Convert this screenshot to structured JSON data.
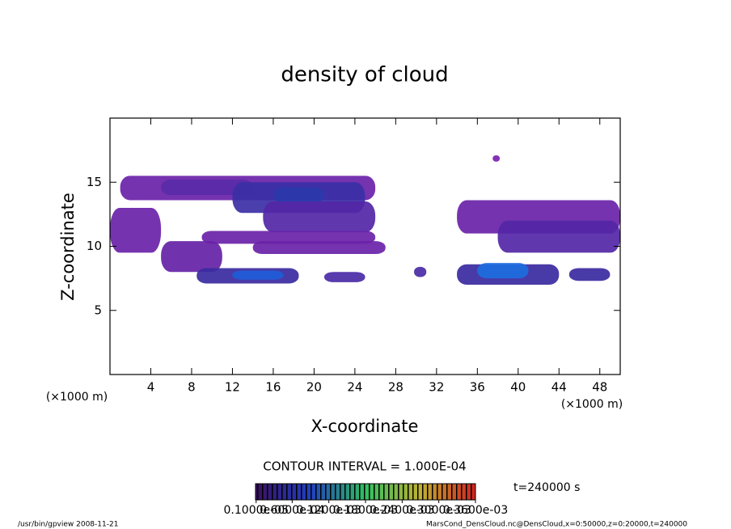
{
  "chart_data": {
    "type": "contour",
    "title": "density of cloud",
    "xlabel": "X-coordinate",
    "ylabel": "Z-coordinate",
    "xunit": "(×1000 m)",
    "yunit": "(×1000 m)",
    "xlim": [
      0,
      50
    ],
    "ylim": [
      0,
      20
    ],
    "xticks": [
      4,
      8,
      12,
      16,
      20,
      24,
      28,
      32,
      36,
      40,
      44,
      48
    ],
    "yticks": [
      5,
      10,
      15
    ],
    "patches": [
      {
        "x": [
          1,
          26
        ],
        "z": [
          13.6,
          15.5
        ],
        "value": 0.0001,
        "color": "#6a22a8"
      },
      {
        "x": [
          5,
          14
        ],
        "z": [
          14,
          15.2
        ],
        "value": 0.00012,
        "color": "#5a2aa8"
      },
      {
        "x": [
          12,
          25
        ],
        "z": [
          12.6,
          15
        ],
        "value": 0.0002,
        "color": "#3b2fa6"
      },
      {
        "x": [
          16,
          21
        ],
        "z": [
          13.4,
          14.6
        ],
        "value": 0.00025,
        "color": "#2a3aaa"
      },
      {
        "x": [
          15,
          26
        ],
        "z": [
          11.1,
          13.5
        ],
        "value": 0.00015,
        "color": "#5226a6"
      },
      {
        "x": [
          0,
          5
        ],
        "z": [
          9.5,
          13
        ],
        "value": 0.0001,
        "color": "#6a22a8"
      },
      {
        "x": [
          5,
          11
        ],
        "z": [
          8,
          10.4
        ],
        "value": 0.0001,
        "color": "#6522a6"
      },
      {
        "x": [
          9,
          26
        ],
        "z": [
          10.2,
          11.2
        ],
        "value": 0.0001,
        "color": "#6a22a8"
      },
      {
        "x": [
          14,
          27
        ],
        "z": [
          9.4,
          10.4
        ],
        "value": 0.0001,
        "color": "#6a22a8"
      },
      {
        "x": [
          8.5,
          18.5
        ],
        "z": [
          7.1,
          8.3
        ],
        "value": 0.0002,
        "color": "#3a2aa0"
      },
      {
        "x": [
          12,
          17
        ],
        "z": [
          7.4,
          8.1
        ],
        "value": 0.0003,
        "color": "#1f5cd8"
      },
      {
        "x": [
          21,
          25
        ],
        "z": [
          7.2,
          8
        ],
        "value": 0.0001,
        "color": "#4a2aa6"
      },
      {
        "x": [
          29.8,
          31
        ],
        "z": [
          7.6,
          8.4
        ],
        "value": 0.0001,
        "color": "#4a2aa6"
      },
      {
        "x": [
          34,
          50
        ],
        "z": [
          11,
          13.6
        ],
        "value": 0.0001,
        "color": "#6a22a8"
      },
      {
        "x": [
          38,
          50
        ],
        "z": [
          9.5,
          12
        ],
        "value": 0.00015,
        "color": "#5226a6"
      },
      {
        "x": [
          34,
          44
        ],
        "z": [
          7,
          8.6
        ],
        "value": 0.0002,
        "color": "#3a2aa0"
      },
      {
        "x": [
          36,
          41
        ],
        "z": [
          7.5,
          8.7
        ],
        "value": 0.00035,
        "color": "#1d6ee0"
      },
      {
        "x": [
          45,
          49
        ],
        "z": [
          7.3,
          8.3
        ],
        "value": 0.0002,
        "color": "#3a2aa0"
      },
      {
        "x": [
          37.5,
          38.2
        ],
        "z": [
          16.6,
          17.1
        ],
        "value": 0.0001,
        "color": "#7a1fb0"
      }
    ],
    "contour_interval": "CONTOUR INTERVAL = 1.000E-04",
    "time_label": "t=240000 s",
    "colorbar": {
      "lim": [
        0,
        0.00036
      ],
      "ticks": [
        {
          "value": 1e-06,
          "label": "0.1000e-05"
        },
        {
          "value": 6e-05,
          "label": "0.6000e-04"
        },
        {
          "value": 0.00012,
          "label": "0.1200e-03"
        },
        {
          "value": 0.00018,
          "label": "0.1800e-03"
        },
        {
          "value": 0.00024,
          "label": "0.2400e-03"
        },
        {
          "value": 0.0003,
          "label": "0.3000e-03"
        },
        {
          "value": 0.00036,
          "label": "0.3600e-03"
        }
      ]
    },
    "footer_left": "/usr/bin/gpview  2008-11-21",
    "footer_right": "MarsCond_DensCloud.nc@DensCloud,x=0:50000,z=0:20000,t=240000"
  }
}
